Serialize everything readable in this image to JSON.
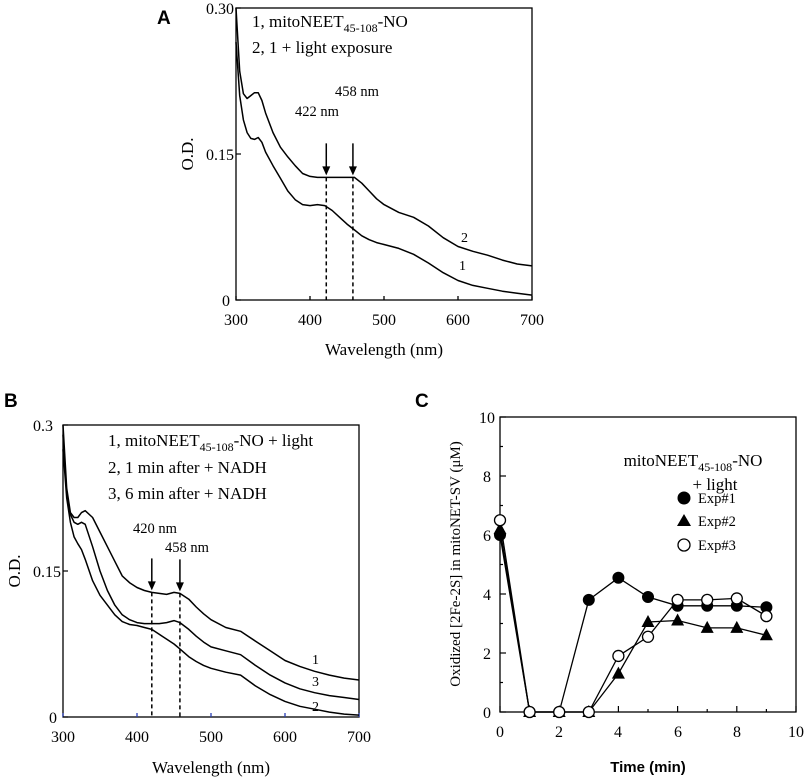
{
  "chart_data": [
    {
      "panel": "A",
      "type": "line",
      "title": "",
      "xlabel": "Wavelength (nm)",
      "ylabel": "O.D.",
      "xlim": [
        300,
        700
      ],
      "ylim": [
        0,
        0.3
      ],
      "xticks": [
        "300",
        "400",
        "500",
        "600",
        "700"
      ],
      "yticks": [
        "0",
        "0.15",
        "0.30"
      ],
      "legend": [
        {
          "prefix": "1, mitoNEET",
          "sub": "45-108",
          "suffix": "-NO"
        },
        {
          "text": "2, 1 + light exposure"
        }
      ],
      "annotations": [
        {
          "label": "422 nm",
          "x": 422
        },
        {
          "label": "458 nm",
          "x": 458
        }
      ],
      "series": [
        {
          "name": "1",
          "x": [
            300,
            305,
            310,
            315,
            320,
            325,
            330,
            335,
            340,
            350,
            360,
            370,
            380,
            390,
            400,
            410,
            420,
            430,
            440,
            450,
            460,
            470,
            480,
            490,
            500,
            520,
            540,
            560,
            580,
            600,
            620,
            640,
            660,
            680,
            700
          ],
          "values": [
            0.265,
            0.21,
            0.185,
            0.172,
            0.166,
            0.165,
            0.167,
            0.162,
            0.152,
            0.138,
            0.125,
            0.112,
            0.103,
            0.098,
            0.097,
            0.098,
            0.097,
            0.092,
            0.085,
            0.078,
            0.072,
            0.066,
            0.062,
            0.059,
            0.057,
            0.053,
            0.047,
            0.038,
            0.028,
            0.02,
            0.015,
            0.012,
            0.009,
            0.007,
            0.005
          ]
        },
        {
          "name": "2",
          "x": [
            300,
            305,
            310,
            315,
            320,
            325,
            330,
            335,
            340,
            350,
            360,
            370,
            380,
            390,
            400,
            410,
            420,
            430,
            440,
            450,
            460,
            470,
            480,
            490,
            500,
            520,
            540,
            560,
            580,
            600,
            620,
            640,
            660,
            680,
            700
          ],
          "values": [
            0.3,
            0.235,
            0.212,
            0.207,
            0.21,
            0.213,
            0.213,
            0.205,
            0.192,
            0.172,
            0.157,
            0.147,
            0.138,
            0.13,
            0.127,
            0.126,
            0.126,
            0.126,
            0.126,
            0.126,
            0.126,
            0.12,
            0.112,
            0.104,
            0.098,
            0.09,
            0.085,
            0.076,
            0.064,
            0.055,
            0.05,
            0.046,
            0.041,
            0.037,
            0.035
          ]
        }
      ]
    },
    {
      "panel": "B",
      "type": "line",
      "title": "",
      "xlabel": "Wavelength (nm)",
      "ylabel": "O.D.",
      "xlim": [
        300,
        700
      ],
      "ylim": [
        0,
        0.3
      ],
      "xticks": [
        "300",
        "400",
        "500",
        "600",
        "700"
      ],
      "yticks": [
        "0",
        "0.15",
        "0.3"
      ],
      "legend": [
        {
          "prefix": "1, mitoNEET",
          "sub": "45-108",
          "suffix": "-NO + light"
        },
        {
          "text": "2, 1 min after + NADH"
        },
        {
          "text": "3, 6 min after + NADH"
        }
      ],
      "annotations": [
        {
          "label": "420 nm",
          "x": 420
        },
        {
          "label": "458 nm",
          "x": 458
        }
      ],
      "series": [
        {
          "name": "1",
          "x": [
            300,
            305,
            310,
            315,
            320,
            325,
            330,
            340,
            350,
            360,
            370,
            380,
            390,
            400,
            410,
            420,
            430,
            440,
            450,
            458,
            470,
            480,
            490,
            500,
            520,
            540,
            560,
            580,
            600,
            620,
            640,
            660,
            680,
            700
          ],
          "values": [
            0.3,
            0.235,
            0.21,
            0.205,
            0.205,
            0.21,
            0.212,
            0.205,
            0.19,
            0.175,
            0.16,
            0.145,
            0.138,
            0.133,
            0.13,
            0.128,
            0.127,
            0.126,
            0.128,
            0.127,
            0.121,
            0.113,
            0.106,
            0.1,
            0.092,
            0.088,
            0.078,
            0.068,
            0.058,
            0.052,
            0.047,
            0.043,
            0.04,
            0.038
          ]
        },
        {
          "name": "2",
          "x": [
            300,
            305,
            310,
            315,
            320,
            325,
            330,
            340,
            350,
            360,
            370,
            380,
            390,
            400,
            410,
            420,
            430,
            440,
            450,
            458,
            470,
            480,
            490,
            500,
            520,
            540,
            560,
            580,
            600,
            620,
            640,
            660,
            680,
            700
          ],
          "values": [
            0.275,
            0.225,
            0.2,
            0.185,
            0.178,
            0.172,
            0.162,
            0.14,
            0.125,
            0.115,
            0.105,
            0.098,
            0.095,
            0.094,
            0.092,
            0.09,
            0.085,
            0.08,
            0.075,
            0.07,
            0.062,
            0.057,
            0.053,
            0.05,
            0.046,
            0.043,
            0.032,
            0.023,
            0.016,
            0.011,
            0.008,
            0.005,
            0.003,
            0.002
          ]
        },
        {
          "name": "3",
          "x": [
            300,
            305,
            310,
            315,
            320,
            325,
            330,
            340,
            350,
            360,
            370,
            380,
            390,
            400,
            410,
            420,
            430,
            440,
            450,
            458,
            470,
            480,
            490,
            500,
            520,
            540,
            560,
            580,
            600,
            620,
            640,
            660,
            680,
            700
          ],
          "values": [
            0.29,
            0.23,
            0.208,
            0.2,
            0.198,
            0.2,
            0.198,
            0.175,
            0.15,
            0.13,
            0.115,
            0.105,
            0.1,
            0.097,
            0.096,
            0.096,
            0.096,
            0.097,
            0.099,
            0.097,
            0.09,
            0.083,
            0.077,
            0.072,
            0.068,
            0.064,
            0.053,
            0.043,
            0.035,
            0.029,
            0.025,
            0.022,
            0.02,
            0.018
          ]
        }
      ]
    },
    {
      "panel": "C",
      "type": "line",
      "title": "",
      "xlabel": "Time (min)",
      "ylabel": "Oxidized [2Fe-2S] in mitoNET-SV (μM)",
      "xlim": [
        0,
        10
      ],
      "ylim": [
        0,
        10
      ],
      "xticks": [
        "0",
        "2",
        "4",
        "6",
        "8",
        "10"
      ],
      "yticks": [
        "0",
        "2",
        "4",
        "6",
        "8",
        "10"
      ],
      "note_line1": {
        "prefix": "mitoNEET",
        "sub": "45-108",
        "suffix": "-NO"
      },
      "note_line2": "+ light",
      "series": [
        {
          "name": "Exp#1",
          "marker": "filled-circle",
          "x": [
            0,
            1,
            2,
            3,
            4,
            5,
            6,
            7,
            8,
            9
          ],
          "values": [
            6.0,
            0.0,
            0.0,
            3.8,
            4.55,
            3.9,
            3.6,
            3.6,
            3.6,
            3.55
          ]
        },
        {
          "name": "Exp#2",
          "marker": "filled-triangle",
          "x": [
            0,
            1,
            2,
            3,
            4,
            5,
            6,
            7,
            8,
            9
          ],
          "values": [
            6.2,
            0.0,
            0.0,
            0.0,
            1.3,
            3.05,
            3.1,
            2.85,
            2.85,
            2.6
          ]
        },
        {
          "name": "Exp#3",
          "marker": "open-circle",
          "x": [
            0,
            1,
            2,
            3,
            4,
            5,
            6,
            7,
            8,
            9
          ],
          "values": [
            6.5,
            0.0,
            0.0,
            0.0,
            1.9,
            2.55,
            3.8,
            3.8,
            3.85,
            3.25
          ]
        }
      ]
    }
  ],
  "labels": {
    "panel_a": "A",
    "panel_b": "B",
    "panel_c": "C",
    "curve_a1": "1",
    "curve_a2": "2",
    "curve_b1": "1",
    "curve_b2": "2",
    "curve_b3": "3"
  }
}
